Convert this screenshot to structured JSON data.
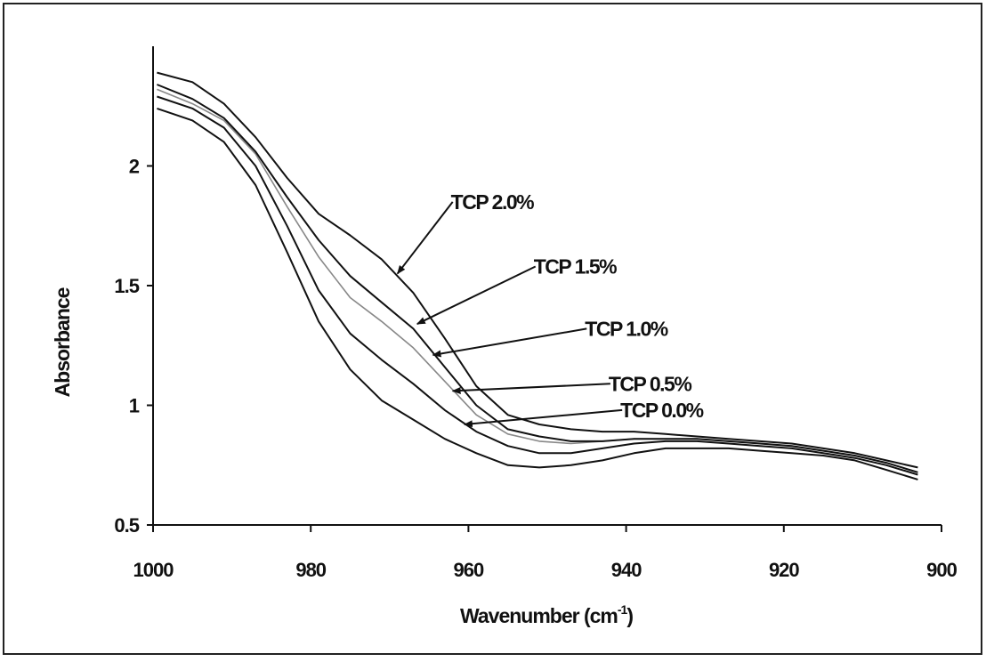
{
  "chart_data": {
    "type": "line",
    "xlabel": "Wavenumber (cm",
    "xlabel_sup": "-1",
    "xlabel_suffix": ")",
    "ylabel": "Absorbance",
    "xlim": [
      1000,
      900
    ],
    "ylim": [
      0.5,
      2.5
    ],
    "x_ticks": [
      1000,
      980,
      960,
      940,
      920,
      900
    ],
    "y_ticks": [
      0.5,
      1,
      1.5,
      2
    ],
    "x_tick_labels": [
      "1000",
      "980",
      "960",
      "940",
      "920",
      "900"
    ],
    "y_tick_labels": [
      "0.5",
      "1",
      "1.5",
      "2"
    ],
    "grid": false,
    "legend": "none",
    "series": [
      {
        "name": "TCP 0.0%",
        "color": "#111111",
        "x": [
          999.5,
          995,
          991,
          987,
          983,
          979,
          975,
          971,
          967,
          963,
          959,
          955,
          951,
          947,
          943,
          939,
          935,
          931,
          927,
          923,
          919,
          915,
          911,
          907,
          903
        ],
        "y": [
          2.24,
          2.19,
          2.1,
          1.92,
          1.64,
          1.35,
          1.15,
          1.02,
          0.94,
          0.86,
          0.8,
          0.75,
          0.74,
          0.75,
          0.77,
          0.8,
          0.82,
          0.82,
          0.82,
          0.81,
          0.8,
          0.79,
          0.77,
          0.73,
          0.69
        ]
      },
      {
        "name": "TCP 0.5%",
        "color": "#111111",
        "x": [
          999.5,
          995,
          991,
          987,
          983,
          979,
          975,
          971,
          967,
          963,
          959,
          955,
          951,
          947,
          943,
          939,
          935,
          931,
          927,
          923,
          919,
          915,
          911,
          907,
          903
        ],
        "y": [
          2.29,
          2.24,
          2.16,
          2.0,
          1.75,
          1.48,
          1.3,
          1.19,
          1.09,
          0.98,
          0.89,
          0.83,
          0.8,
          0.8,
          0.82,
          0.84,
          0.85,
          0.85,
          0.84,
          0.83,
          0.82,
          0.8,
          0.78,
          0.75,
          0.71
        ]
      },
      {
        "name": "TCP 1.0%",
        "color": "#888888",
        "x": [
          999.5,
          995,
          991,
          987,
          983,
          979,
          975,
          971,
          967,
          963,
          959,
          955,
          951,
          947,
          943,
          939,
          935,
          931,
          927,
          923,
          919,
          915,
          911,
          907,
          903
        ],
        "y": [
          2.32,
          2.26,
          2.19,
          2.05,
          1.83,
          1.62,
          1.45,
          1.35,
          1.24,
          1.1,
          0.96,
          0.88,
          0.85,
          0.84,
          0.85,
          0.86,
          0.86,
          0.86,
          0.85,
          0.84,
          0.83,
          0.81,
          0.79,
          0.76,
          0.72
        ]
      },
      {
        "name": "TCP 1.5%",
        "color": "#111111",
        "x": [
          999.5,
          995,
          991,
          987,
          983,
          979,
          975,
          971,
          967,
          963,
          959,
          955,
          951,
          947,
          943,
          939,
          935,
          931,
          927,
          923,
          919,
          915,
          911,
          907,
          903
        ],
        "y": [
          2.34,
          2.28,
          2.2,
          2.06,
          1.87,
          1.69,
          1.54,
          1.43,
          1.32,
          1.16,
          1.0,
          0.9,
          0.87,
          0.85,
          0.85,
          0.86,
          0.86,
          0.86,
          0.85,
          0.84,
          0.83,
          0.81,
          0.79,
          0.76,
          0.72
        ]
      },
      {
        "name": "TCP 2.0%",
        "color": "#111111",
        "x": [
          999.5,
          995,
          991,
          987,
          983,
          979,
          975,
          971,
          967,
          963,
          959,
          955,
          951,
          947,
          943,
          939,
          935,
          931,
          927,
          923,
          919,
          915,
          911,
          907,
          903
        ],
        "y": [
          2.39,
          2.35,
          2.26,
          2.12,
          1.95,
          1.8,
          1.71,
          1.61,
          1.47,
          1.28,
          1.08,
          0.96,
          0.92,
          0.9,
          0.89,
          0.89,
          0.88,
          0.87,
          0.86,
          0.85,
          0.84,
          0.82,
          0.8,
          0.77,
          0.74
        ]
      }
    ],
    "annotations": [
      {
        "text": "TCP 2.0%",
        "series": "TCP 2.0%",
        "text_at": [
          962,
          1.85
        ],
        "arrow_to": [
          969,
          1.55
        ]
      },
      {
        "text": "TCP 1.5%",
        "series": "TCP 1.5%",
        "text_at": [
          951.5,
          1.58
        ],
        "arrow_to": [
          966.5,
          1.34
        ]
      },
      {
        "text": "TCP 1.0%",
        "series": "TCP 1.0%",
        "text_at": [
          945,
          1.32
        ],
        "arrow_to": [
          964.5,
          1.21
        ]
      },
      {
        "text": "TCP 0.5%",
        "series": "TCP 0.5%",
        "text_at": [
          942,
          1.09
        ],
        "arrow_to": [
          962,
          1.06
        ]
      },
      {
        "text": "TCP 0.0%",
        "series": "TCP 0.0%",
        "text_at": [
          940.5,
          0.98
        ],
        "arrow_to": [
          960.5,
          0.92
        ]
      }
    ]
  }
}
